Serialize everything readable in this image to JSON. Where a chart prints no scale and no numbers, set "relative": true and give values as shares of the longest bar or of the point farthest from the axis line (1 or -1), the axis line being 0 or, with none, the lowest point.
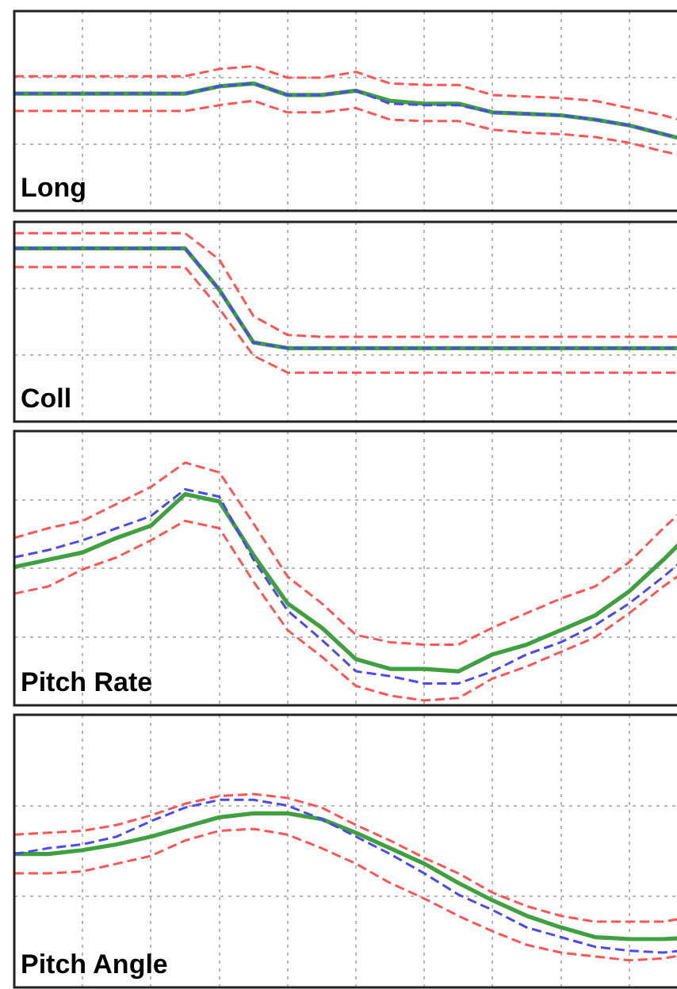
{
  "chart_data": [
    {
      "type": "line",
      "title": "Long",
      "relative": true,
      "grid": true,
      "legend": false,
      "marker": "none",
      "categories": [
        null,
        null,
        null,
        null,
        null,
        null,
        null,
        null,
        null,
        null,
        null,
        null,
        null,
        null,
        null,
        null,
        null,
        null,
        null,
        null,
        null
      ],
      "series": [
        {
          "color": "#ff5555",
          "line_style": "dashed",
          "values": [
            0.93,
            0.93,
            0.93,
            0.93,
            0.93,
            0.93,
            0.98,
            1.0,
            0.92,
            0.92,
            0.96,
            0.88,
            0.87,
            0.87,
            0.8,
            0.79,
            0.78,
            0.76,
            0.71,
            0.66,
            0.59
          ]
        },
        {
          "color": "#ff5555",
          "line_style": "dashed",
          "values": [
            0.69,
            0.69,
            0.69,
            0.69,
            0.69,
            0.69,
            0.73,
            0.76,
            0.68,
            0.68,
            0.71,
            0.63,
            0.62,
            0.62,
            0.56,
            0.54,
            0.53,
            0.51,
            0.47,
            0.41,
            0.36
          ]
        },
        {
          "color": "#3fa03f",
          "line_style": "solid",
          "values": [
            0.81,
            0.81,
            0.81,
            0.81,
            0.81,
            0.81,
            0.86,
            0.88,
            0.8,
            0.8,
            0.83,
            0.76,
            0.74,
            0.74,
            0.68,
            0.67,
            0.66,
            0.63,
            0.59,
            0.53,
            0.47
          ]
        },
        {
          "color": "#4a4aee",
          "line_style": "dashed",
          "values": [
            0.81,
            0.81,
            0.81,
            0.81,
            0.81,
            0.81,
            0.86,
            0.88,
            0.8,
            0.8,
            0.83,
            0.74,
            0.73,
            0.73,
            0.68,
            0.67,
            0.66,
            0.63,
            0.59,
            0.53,
            0.47
          ]
        }
      ]
    },
    {
      "type": "line",
      "title": "Coll",
      "relative": true,
      "grid": true,
      "legend": false,
      "marker": "none",
      "categories": [
        null,
        null,
        null,
        null,
        null,
        null,
        null,
        null,
        null,
        null,
        null,
        null,
        null,
        null,
        null,
        null,
        null,
        null,
        null,
        null,
        null
      ],
      "series": [
        {
          "color": "#ff5555",
          "line_style": "dashed",
          "values": [
            1.0,
            1.0,
            1.0,
            1.0,
            1.0,
            1.0,
            0.86,
            0.56,
            0.46,
            0.45,
            0.45,
            0.45,
            0.45,
            0.45,
            0.45,
            0.45,
            0.45,
            0.45,
            0.45,
            0.45,
            0.45
          ]
        },
        {
          "color": "#ff5555",
          "line_style": "dashed",
          "values": [
            0.82,
            0.82,
            0.82,
            0.82,
            0.82,
            0.82,
            0.6,
            0.35,
            0.26,
            0.26,
            0.26,
            0.26,
            0.26,
            0.26,
            0.26,
            0.26,
            0.26,
            0.26,
            0.26,
            0.26,
            0.26
          ]
        },
        {
          "color": "#3fa03f",
          "line_style": "solid",
          "values": [
            0.92,
            0.92,
            0.92,
            0.92,
            0.92,
            0.92,
            0.7,
            0.42,
            0.39,
            0.39,
            0.39,
            0.39,
            0.39,
            0.39,
            0.39,
            0.39,
            0.39,
            0.39,
            0.39,
            0.39,
            0.39
          ]
        },
        {
          "color": "#4a4aee",
          "line_style": "dashed",
          "values": [
            0.92,
            0.92,
            0.92,
            0.92,
            0.92,
            0.92,
            0.7,
            0.42,
            0.39,
            0.39,
            0.39,
            0.39,
            0.39,
            0.39,
            0.39,
            0.39,
            0.39,
            0.39,
            0.39,
            0.39,
            0.39
          ]
        }
      ]
    },
    {
      "type": "line",
      "title": "Pitch Rate",
      "relative": true,
      "grid": true,
      "legend": false,
      "marker": "none",
      "categories": [
        null,
        null,
        null,
        null,
        null,
        null,
        null,
        null,
        null,
        null,
        null,
        null,
        null,
        null,
        null,
        null,
        null,
        null,
        null,
        null,
        null
      ],
      "series": [
        {
          "color": "#ff5555",
          "line_style": "dashed",
          "values": [
            0.69,
            0.73,
            0.76,
            0.83,
            0.9,
            1.0,
            0.96,
            0.75,
            0.53,
            0.42,
            0.29,
            0.26,
            0.25,
            0.25,
            0.32,
            0.38,
            0.44,
            0.49,
            0.59,
            0.73,
            0.86
          ]
        },
        {
          "color": "#ff5555",
          "line_style": "dashed",
          "values": [
            0.46,
            0.49,
            0.56,
            0.61,
            0.68,
            0.76,
            0.73,
            0.51,
            0.31,
            0.2,
            0.08,
            0.04,
            0.02,
            0.03,
            0.11,
            0.16,
            0.22,
            0.28,
            0.38,
            0.49,
            0.59
          ]
        },
        {
          "color": "#3fa03f",
          "line_style": "solid",
          "values": [
            0.57,
            0.6,
            0.63,
            0.69,
            0.74,
            0.87,
            0.84,
            0.62,
            0.42,
            0.32,
            0.19,
            0.15,
            0.15,
            0.14,
            0.21,
            0.25,
            0.31,
            0.37,
            0.47,
            0.6,
            0.74
          ]
        },
        {
          "color": "#4a4aee",
          "line_style": "dashed",
          "values": [
            0.61,
            0.64,
            0.68,
            0.73,
            0.78,
            0.89,
            0.86,
            0.6,
            0.39,
            0.27,
            0.14,
            0.12,
            0.09,
            0.09,
            0.14,
            0.21,
            0.26,
            0.33,
            0.42,
            0.53,
            0.65
          ]
        }
      ]
    },
    {
      "type": "line",
      "title": "Pitch Angle",
      "relative": true,
      "grid": true,
      "legend": false,
      "marker": "none",
      "categories": [
        null,
        null,
        null,
        null,
        null,
        null,
        null,
        null,
        null,
        null,
        null,
        null,
        null,
        null,
        null,
        null,
        null,
        null,
        null,
        null,
        null
      ],
      "series": [
        {
          "color": "#ff5555",
          "line_style": "dashed",
          "values": [
            0.79,
            0.8,
            0.81,
            0.84,
            0.89,
            0.95,
            0.99,
            1.0,
            0.98,
            0.93,
            0.84,
            0.76,
            0.67,
            0.59,
            0.49,
            0.42,
            0.37,
            0.34,
            0.34,
            0.34,
            0.37
          ]
        },
        {
          "color": "#ff5555",
          "line_style": "dashed",
          "values": [
            0.59,
            0.59,
            0.6,
            0.64,
            0.68,
            0.76,
            0.81,
            0.82,
            0.79,
            0.72,
            0.64,
            0.54,
            0.46,
            0.37,
            0.29,
            0.22,
            0.18,
            0.16,
            0.14,
            0.15,
            0.18
          ]
        },
        {
          "color": "#3fa03f",
          "line_style": "solid",
          "values": [
            0.69,
            0.69,
            0.71,
            0.74,
            0.78,
            0.83,
            0.88,
            0.9,
            0.9,
            0.87,
            0.8,
            0.72,
            0.64,
            0.54,
            0.45,
            0.37,
            0.31,
            0.26,
            0.25,
            0.25,
            0.26
          ]
        },
        {
          "color": "#4a4aee",
          "line_style": "dashed",
          "values": [
            0.69,
            0.72,
            0.74,
            0.78,
            0.86,
            0.93,
            0.97,
            0.97,
            0.94,
            0.87,
            0.78,
            0.69,
            0.59,
            0.48,
            0.4,
            0.31,
            0.26,
            0.21,
            0.19,
            0.18,
            0.2
          ]
        }
      ]
    }
  ]
}
